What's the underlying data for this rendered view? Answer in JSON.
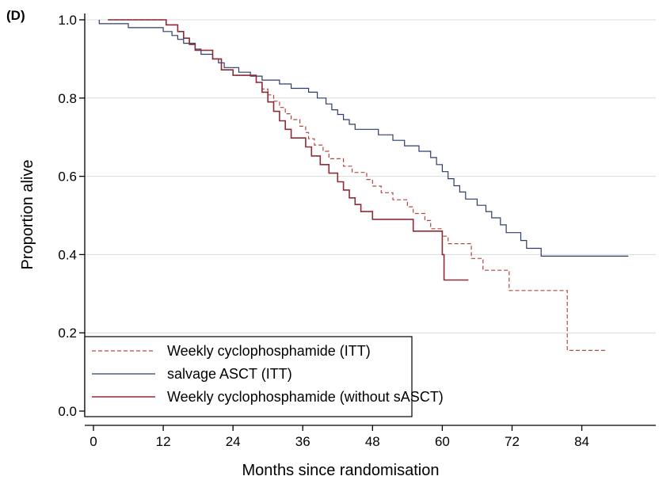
{
  "panel_label": "(D)",
  "chart_data": {
    "type": "line",
    "xlabel": "Months since randomisation",
    "ylabel": "Proportion alive",
    "xlim": [
      -2,
      93
    ],
    "ylim": [
      -0.02,
      1.02
    ],
    "xticks": [
      0,
      12,
      24,
      36,
      48,
      60,
      72,
      84
    ],
    "yticks": [
      0.0,
      0.2,
      0.4,
      0.6,
      0.8,
      1.0
    ],
    "ytick_labels": [
      "0.0",
      "0.2",
      "0.4",
      "0.6",
      "0.8",
      "1.0"
    ],
    "grid": "horizontal",
    "legend_position": "bottom-left",
    "series": [
      {
        "name": "Weekly cyclophosphamide (ITT)",
        "color": "#b5473f",
        "dash": "dashed",
        "points": [
          [
            2.5,
            1.0
          ],
          [
            12.5,
            1.0
          ],
          [
            12.5,
            0.987
          ],
          [
            14.5,
            0.987
          ],
          [
            14.5,
            0.97
          ],
          [
            15.5,
            0.97
          ],
          [
            15.5,
            0.953
          ],
          [
            16.5,
            0.953
          ],
          [
            16.5,
            0.937
          ],
          [
            17.5,
            0.937
          ],
          [
            17.5,
            0.922
          ],
          [
            20.5,
            0.922
          ],
          [
            20.5,
            0.9
          ],
          [
            22,
            0.9
          ],
          [
            22,
            0.872
          ],
          [
            24,
            0.872
          ],
          [
            24,
            0.858
          ],
          [
            28,
            0.858
          ],
          [
            28,
            0.84
          ],
          [
            29,
            0.84
          ],
          [
            29,
            0.823
          ],
          [
            30,
            0.823
          ],
          [
            30,
            0.808
          ],
          [
            31,
            0.808
          ],
          [
            31,
            0.792
          ],
          [
            32,
            0.792
          ],
          [
            32,
            0.776
          ],
          [
            33,
            0.776
          ],
          [
            33,
            0.76
          ],
          [
            34,
            0.76
          ],
          [
            34,
            0.745
          ],
          [
            35.5,
            0.745
          ],
          [
            35.5,
            0.728
          ],
          [
            36.5,
            0.728
          ],
          [
            36.5,
            0.712
          ],
          [
            37,
            0.712
          ],
          [
            37,
            0.696
          ],
          [
            38,
            0.696
          ],
          [
            38,
            0.68
          ],
          [
            39.5,
            0.68
          ],
          [
            39.5,
            0.664
          ],
          [
            40.5,
            0.664
          ],
          [
            40.5,
            0.645
          ],
          [
            43,
            0.645
          ],
          [
            43,
            0.626
          ],
          [
            44.5,
            0.626
          ],
          [
            44.5,
            0.61
          ],
          [
            47,
            0.61
          ],
          [
            47,
            0.592
          ],
          [
            48,
            0.592
          ],
          [
            48,
            0.575
          ],
          [
            49.5,
            0.575
          ],
          [
            49.5,
            0.558
          ],
          [
            51.5,
            0.558
          ],
          [
            51.5,
            0.54
          ],
          [
            54,
            0.54
          ],
          [
            54,
            0.522
          ],
          [
            55,
            0.522
          ],
          [
            55,
            0.505
          ],
          [
            57,
            0.505
          ],
          [
            57,
            0.487
          ],
          [
            58,
            0.487
          ],
          [
            58,
            0.466
          ],
          [
            60,
            0.466
          ],
          [
            60,
            0.447
          ],
          [
            61,
            0.447
          ],
          [
            61,
            0.428
          ],
          [
            65,
            0.428
          ],
          [
            65,
            0.39
          ],
          [
            67,
            0.39
          ],
          [
            67,
            0.36
          ],
          [
            71.5,
            0.36
          ],
          [
            71.5,
            0.308
          ],
          [
            81.5,
            0.308
          ],
          [
            81.5,
            0.155
          ],
          [
            88,
            0.155
          ]
        ]
      },
      {
        "name": "salvage ASCT (ITT)",
        "color": "#2c3d6b",
        "dash": "solid",
        "points": [
          [
            1,
            1.0
          ],
          [
            1,
            0.99
          ],
          [
            6,
            0.99
          ],
          [
            6,
            0.98
          ],
          [
            12,
            0.98
          ],
          [
            12,
            0.97
          ],
          [
            13.5,
            0.97
          ],
          [
            13.5,
            0.96
          ],
          [
            14.5,
            0.96
          ],
          [
            14.5,
            0.95
          ],
          [
            15.5,
            0.95
          ],
          [
            15.5,
            0.94
          ],
          [
            17.5,
            0.94
          ],
          [
            17.5,
            0.925
          ],
          [
            18.5,
            0.925
          ],
          [
            18.5,
            0.912
          ],
          [
            20.5,
            0.912
          ],
          [
            20.5,
            0.9
          ],
          [
            21.5,
            0.9
          ],
          [
            21.5,
            0.89
          ],
          [
            22.5,
            0.89
          ],
          [
            22.5,
            0.878
          ],
          [
            25,
            0.878
          ],
          [
            25,
            0.866
          ],
          [
            27,
            0.866
          ],
          [
            27,
            0.856
          ],
          [
            29,
            0.856
          ],
          [
            29,
            0.846
          ],
          [
            32,
            0.846
          ],
          [
            32,
            0.836
          ],
          [
            34,
            0.836
          ],
          [
            34,
            0.825
          ],
          [
            37,
            0.825
          ],
          [
            37,
            0.815
          ],
          [
            38.5,
            0.815
          ],
          [
            38.5,
            0.8
          ],
          [
            40,
            0.8
          ],
          [
            40,
            0.785
          ],
          [
            41,
            0.785
          ],
          [
            41,
            0.77
          ],
          [
            42,
            0.77
          ],
          [
            42,
            0.758
          ],
          [
            43,
            0.758
          ],
          [
            43,
            0.745
          ],
          [
            44,
            0.745
          ],
          [
            44,
            0.733
          ],
          [
            45,
            0.733
          ],
          [
            45,
            0.72
          ],
          [
            49,
            0.72
          ],
          [
            49,
            0.706
          ],
          [
            51.5,
            0.706
          ],
          [
            51.5,
            0.692
          ],
          [
            53.5,
            0.692
          ],
          [
            53.5,
            0.678
          ],
          [
            56,
            0.678
          ],
          [
            56,
            0.664
          ],
          [
            58,
            0.664
          ],
          [
            58,
            0.648
          ],
          [
            59,
            0.648
          ],
          [
            59,
            0.63
          ],
          [
            60,
            0.63
          ],
          [
            60,
            0.612
          ],
          [
            61,
            0.612
          ],
          [
            61,
            0.594
          ],
          [
            62,
            0.594
          ],
          [
            62,
            0.576
          ],
          [
            63,
            0.576
          ],
          [
            63,
            0.56
          ],
          [
            64,
            0.56
          ],
          [
            64,
            0.542
          ],
          [
            66,
            0.542
          ],
          [
            66,
            0.526
          ],
          [
            67.5,
            0.526
          ],
          [
            67.5,
            0.51
          ],
          [
            68.5,
            0.51
          ],
          [
            68.5,
            0.494
          ],
          [
            70,
            0.494
          ],
          [
            70,
            0.476
          ],
          [
            71,
            0.476
          ],
          [
            71,
            0.456
          ],
          [
            73.5,
            0.456
          ],
          [
            73.5,
            0.436
          ],
          [
            74.5,
            0.436
          ],
          [
            74.5,
            0.416
          ],
          [
            77,
            0.416
          ],
          [
            77,
            0.396
          ],
          [
            92,
            0.396
          ]
        ]
      },
      {
        "name": "Weekly cyclophosphamide (without sASCT)",
        "color": "#8e2b35",
        "dash": "solid",
        "points": [
          [
            2.5,
            1.0
          ],
          [
            12.5,
            1.0
          ],
          [
            12.5,
            0.987
          ],
          [
            14.5,
            0.987
          ],
          [
            14.5,
            0.97
          ],
          [
            15.5,
            0.97
          ],
          [
            15.5,
            0.953
          ],
          [
            16.5,
            0.953
          ],
          [
            16.5,
            0.937
          ],
          [
            17.5,
            0.937
          ],
          [
            17.5,
            0.922
          ],
          [
            20.5,
            0.922
          ],
          [
            20.5,
            0.9
          ],
          [
            22,
            0.9
          ],
          [
            22,
            0.872
          ],
          [
            24,
            0.872
          ],
          [
            24,
            0.858
          ],
          [
            28,
            0.858
          ],
          [
            28,
            0.84
          ],
          [
            29,
            0.84
          ],
          [
            29,
            0.815
          ],
          [
            30,
            0.815
          ],
          [
            30,
            0.79
          ],
          [
            31,
            0.79
          ],
          [
            31,
            0.766
          ],
          [
            32,
            0.766
          ],
          [
            32,
            0.742
          ],
          [
            33,
            0.742
          ],
          [
            33,
            0.72
          ],
          [
            34,
            0.72
          ],
          [
            34,
            0.698
          ],
          [
            36.5,
            0.698
          ],
          [
            36.5,
            0.675
          ],
          [
            37.5,
            0.675
          ],
          [
            37.5,
            0.652
          ],
          [
            39,
            0.652
          ],
          [
            39,
            0.63
          ],
          [
            40.5,
            0.63
          ],
          [
            40.5,
            0.608
          ],
          [
            42,
            0.608
          ],
          [
            42,
            0.586
          ],
          [
            43,
            0.586
          ],
          [
            43,
            0.565
          ],
          [
            44,
            0.565
          ],
          [
            44,
            0.545
          ],
          [
            45,
            0.545
          ],
          [
            45,
            0.528
          ],
          [
            46,
            0.528
          ],
          [
            46,
            0.51
          ],
          [
            48,
            0.51
          ],
          [
            48,
            0.49
          ],
          [
            55,
            0.49
          ],
          [
            55,
            0.46
          ],
          [
            60,
            0.46
          ],
          [
            60,
            0.4
          ],
          [
            60.3,
            0.4
          ],
          [
            60.3,
            0.335
          ],
          [
            64.5,
            0.335
          ]
        ]
      }
    ]
  }
}
